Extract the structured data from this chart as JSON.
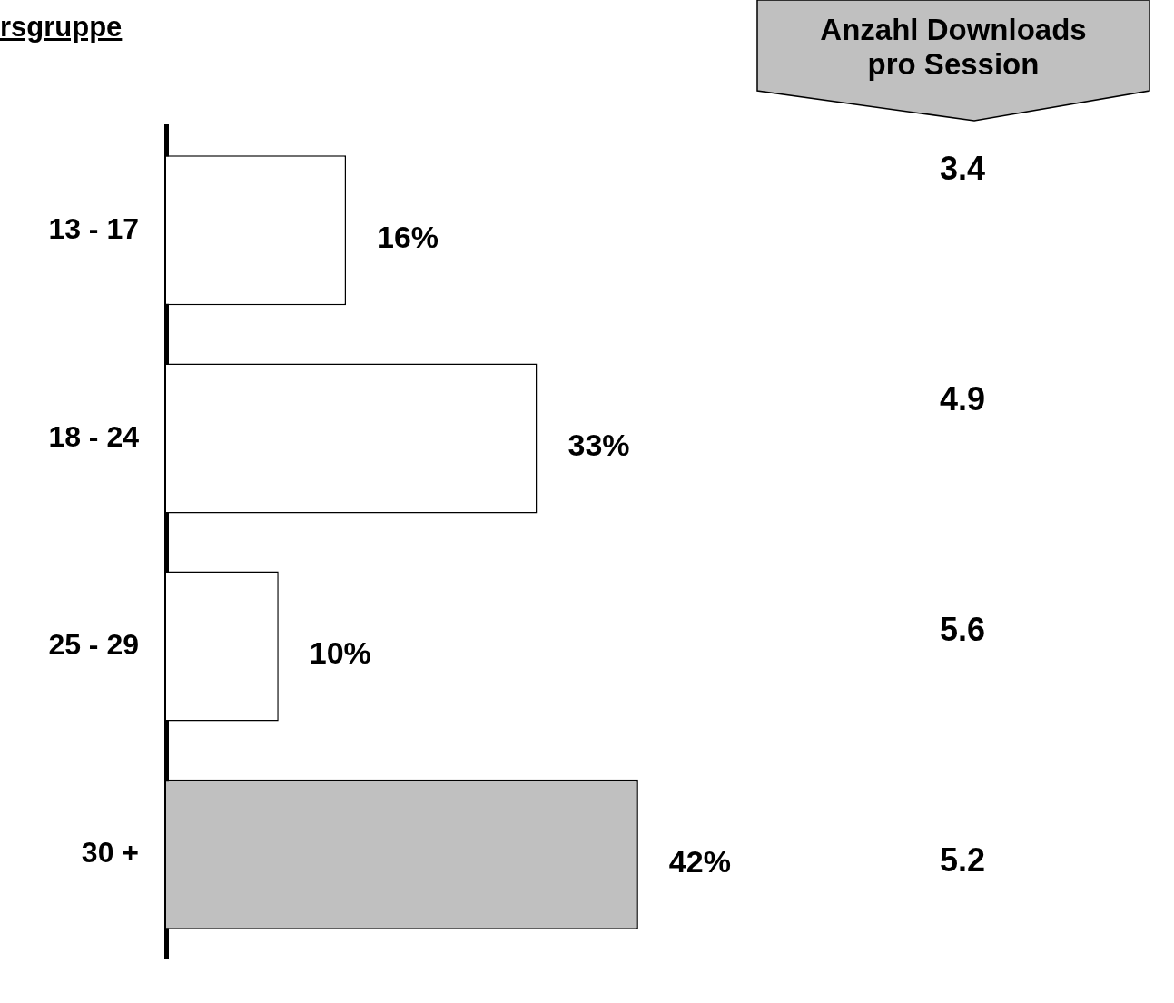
{
  "chart_data": [
    {
      "type": "bar",
      "orientation": "horizontal",
      "title": "rsgruppe",
      "categories": [
        "13 - 17",
        "18 - 24",
        "25 - 29",
        "30 +"
      ],
      "values": [
        16,
        33,
        10,
        42
      ],
      "value_labels": [
        "16%",
        "33%",
        "10%",
        "42%"
      ],
      "colors": [
        "#ffffff",
        "#ffffff",
        "#ffffff",
        "#c0c0c0"
      ],
      "legend": false
    },
    {
      "type": "other",
      "title": "Anzahl Downloads pro Session",
      "categories": [
        null,
        null,
        null,
        null
      ],
      "values": [
        3.4,
        4.9,
        5.6,
        5.2
      ],
      "data_labels": true
    }
  ]
}
